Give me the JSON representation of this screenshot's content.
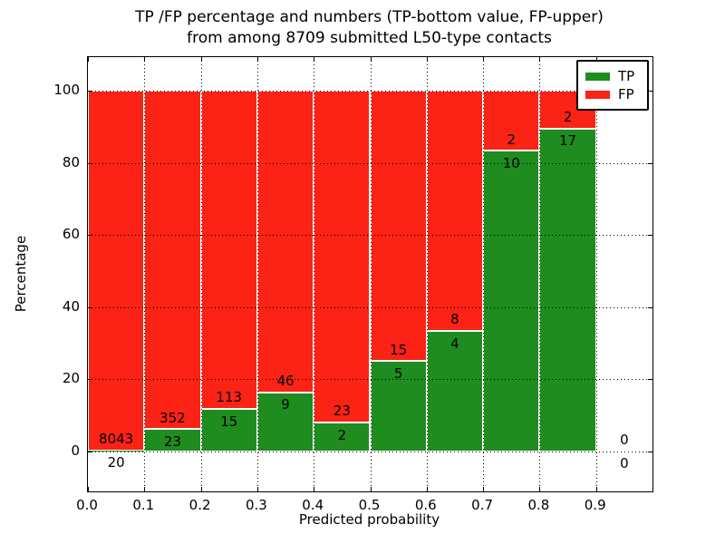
{
  "chart_data": {
    "type": "bar",
    "stacked": true,
    "title_line1": "TP /FP percentage and numbers (TP-bottom value, FP-upper)",
    "title_line2": "from among 8709 submitted L50-type contacts",
    "xlabel": "Predicted probability",
    "ylabel": "Percentage",
    "x_tick_labels": [
      "0.0",
      "0.1",
      "0.2",
      "0.3",
      "0.4",
      "0.5",
      "0.6",
      "0.7",
      "0.8",
      "0.9"
    ],
    "x_tick_values": [
      0.0,
      0.1,
      0.2,
      0.3,
      0.4,
      0.5,
      0.6,
      0.7,
      0.8,
      0.9
    ],
    "y_tick_values": [
      0,
      20,
      40,
      60,
      80,
      100
    ],
    "xlim": [
      0.0,
      1.0
    ],
    "ylim": [
      -11.1,
      109.3
    ],
    "grid": "dotted",
    "legend": {
      "position": "upper right",
      "entries": [
        {
          "label": "TP",
          "color": "#1e8c1e"
        },
        {
          "label": "FP",
          "color": "#fb2216"
        }
      ]
    },
    "colors": {
      "tp": "#1e8c1e",
      "fp": "#fb2216"
    },
    "bins": [
      {
        "range": [
          0.0,
          0.1
        ],
        "tp": 20,
        "fp": 8043
      },
      {
        "range": [
          0.1,
          0.2
        ],
        "tp": 23,
        "fp": 352
      },
      {
        "range": [
          0.2,
          0.3
        ],
        "tp": 15,
        "fp": 113
      },
      {
        "range": [
          0.3,
          0.4
        ],
        "tp": 9,
        "fp": 46
      },
      {
        "range": [
          0.4,
          0.5
        ],
        "tp": 2,
        "fp": 23
      },
      {
        "range": [
          0.5,
          0.6
        ],
        "tp": 5,
        "fp": 15
      },
      {
        "range": [
          0.6,
          0.7
        ],
        "tp": 4,
        "fp": 8
      },
      {
        "range": [
          0.7,
          0.8
        ],
        "tp": 10,
        "fp": 2
      },
      {
        "range": [
          0.8,
          0.9
        ],
        "tp": 17,
        "fp": 2
      },
      {
        "range": [
          0.9,
          1.0
        ],
        "tp": 0,
        "fp": 0
      }
    ]
  }
}
